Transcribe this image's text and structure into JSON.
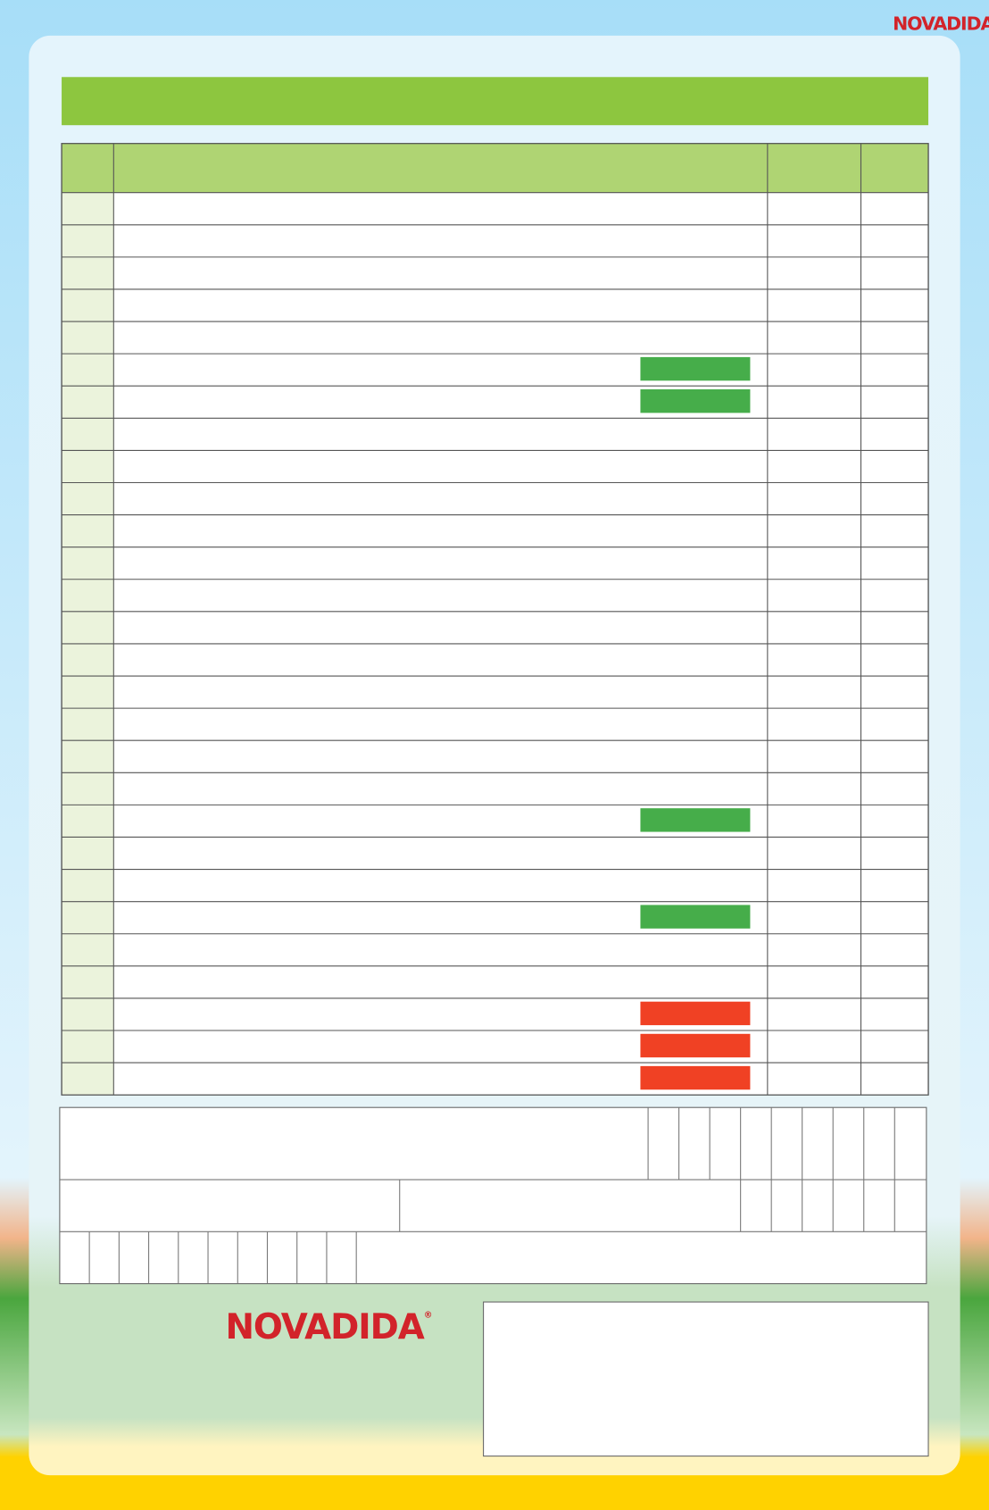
{
  "header": {
    "logo": "NOVADIDA",
    "logo_mark": "®"
  },
  "footer": {
    "logo": "NOVADIDA",
    "logo_mark": "®"
  }
}
